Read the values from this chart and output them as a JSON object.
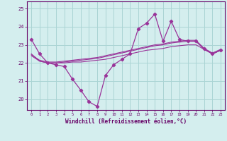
{
  "xlabel": "Windchill (Refroidissement éolien,°C)",
  "hours": [
    0,
    1,
    2,
    3,
    4,
    5,
    6,
    7,
    8,
    9,
    10,
    11,
    12,
    13,
    14,
    15,
    16,
    17,
    18,
    19,
    20,
    21,
    22,
    23
  ],
  "line1": [
    23.3,
    22.5,
    22.0,
    21.9,
    21.8,
    21.1,
    20.5,
    19.85,
    19.6,
    21.3,
    21.9,
    22.2,
    22.5,
    23.9,
    24.2,
    24.7,
    23.2,
    24.3,
    23.3,
    23.2,
    23.2,
    22.8,
    22.5,
    22.7
  ],
  "line2": [
    22.5,
    22.1,
    22.0,
    22.0,
    22.0,
    22.05,
    22.05,
    22.1,
    22.15,
    22.2,
    22.3,
    22.4,
    22.5,
    22.6,
    22.7,
    22.75,
    22.8,
    22.9,
    22.95,
    23.0,
    23.0,
    22.75,
    22.5,
    22.7
  ],
  "line3": [
    22.4,
    22.1,
    22.0,
    22.0,
    22.05,
    22.1,
    22.15,
    22.2,
    22.25,
    22.35,
    22.45,
    22.55,
    22.65,
    22.75,
    22.85,
    22.95,
    23.0,
    23.1,
    23.15,
    23.2,
    23.2,
    22.75,
    22.5,
    22.7
  ],
  "line4": [
    22.45,
    22.15,
    22.05,
    22.05,
    22.1,
    22.15,
    22.2,
    22.25,
    22.3,
    22.4,
    22.5,
    22.6,
    22.7,
    22.8,
    22.9,
    23.0,
    23.05,
    23.15,
    23.2,
    23.25,
    23.25,
    22.8,
    22.55,
    22.75
  ],
  "line_color": "#993399",
  "bg_color": "#d4eeee",
  "grid_color": "#aad4d4",
  "ylim": [
    19.4,
    25.4
  ],
  "yticks": [
    20,
    21,
    22,
    23,
    24,
    25
  ],
  "xlim": [
    -0.5,
    23.5
  ]
}
